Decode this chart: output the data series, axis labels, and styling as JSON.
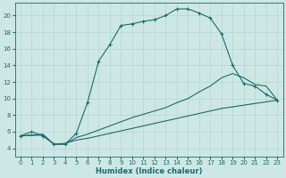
{
  "background_color": "#cde8e4",
  "grid_color": "#b8d8d4",
  "line_color": "#1a6b6b",
  "xlabel": "Humidex (Indice chaleur)",
  "xlim": [
    -0.5,
    23.5
  ],
  "ylim": [
    3.0,
    21.5
  ],
  "yticks": [
    4,
    6,
    8,
    10,
    12,
    14,
    16,
    18,
    20
  ],
  "xticks": [
    0,
    1,
    2,
    3,
    4,
    5,
    6,
    7,
    8,
    9,
    10,
    11,
    12,
    13,
    14,
    15,
    16,
    17,
    18,
    19,
    20,
    21,
    22,
    23
  ],
  "line1_x": [
    0,
    1,
    2,
    3,
    4,
    5,
    6,
    7,
    8,
    9,
    10,
    11,
    12,
    13,
    14,
    15,
    16,
    17,
    18,
    19,
    20,
    21,
    22,
    23
  ],
  "line1_y": [
    5.5,
    6.0,
    5.5,
    4.5,
    4.5,
    5.8,
    9.5,
    14.5,
    16.5,
    18.8,
    19.0,
    19.3,
    19.5,
    20.0,
    20.8,
    20.8,
    20.3,
    19.7,
    17.8,
    14.0,
    11.8,
    11.5,
    10.5,
    9.8
  ],
  "line2_x": [
    0,
    1,
    2,
    3,
    4,
    5,
    6,
    7,
    8,
    9,
    10,
    11,
    12,
    13,
    14,
    15,
    16,
    17,
    18,
    19,
    20,
    21,
    22,
    23
  ],
  "line2_y": [
    5.5,
    5.6,
    5.7,
    4.5,
    4.5,
    5.3,
    5.7,
    6.2,
    6.7,
    7.2,
    7.7,
    8.1,
    8.5,
    8.9,
    9.5,
    10.0,
    10.8,
    11.5,
    12.5,
    13.0,
    12.5,
    11.7,
    11.5,
    9.8
  ],
  "line3_x": [
    0,
    1,
    2,
    3,
    4,
    5,
    6,
    7,
    8,
    9,
    10,
    11,
    12,
    13,
    14,
    15,
    16,
    17,
    18,
    19,
    20,
    21,
    22,
    23
  ],
  "line3_y": [
    5.5,
    5.55,
    5.6,
    4.5,
    4.6,
    5.0,
    5.2,
    5.5,
    5.8,
    6.1,
    6.4,
    6.7,
    7.0,
    7.3,
    7.6,
    7.9,
    8.2,
    8.5,
    8.8,
    9.0,
    9.2,
    9.4,
    9.6,
    9.8
  ],
  "figsize": [
    3.2,
    2.0
  ],
  "dpi": 100
}
